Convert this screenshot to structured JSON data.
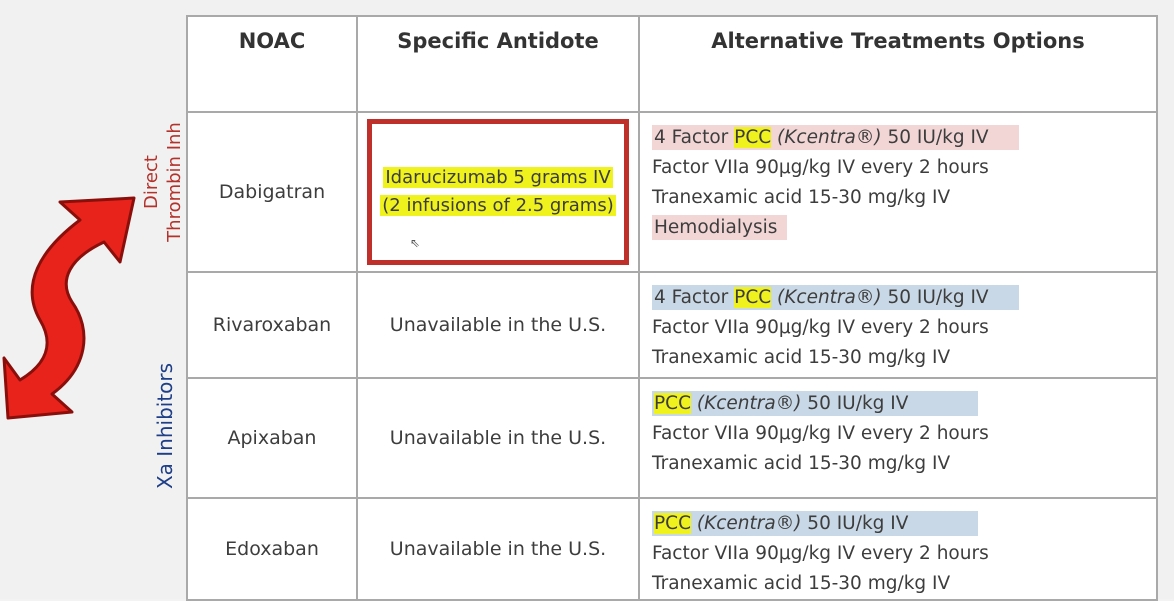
{
  "table": {
    "headers": [
      "NOAC",
      "Specific Antidote",
      "Alternative Treatments Options"
    ],
    "groups": {
      "direct_thrombin": [
        "Direct",
        "Thrombin Inh"
      ],
      "xa_inhibitors": "Xa Inhibitors"
    },
    "rows": [
      {
        "drug": "Dabigatran",
        "antidote": {
          "line1": "Idarucizumab 5 grams  IV",
          "line2": "(2 infusions of 2.5 grams)"
        },
        "alt": {
          "l1_pre": "4 Factor ",
          "l1_pcc": "PCC",
          "l1_kc": " (Kcentra®)",
          "l1_post": " 50 IU/kg IV",
          "l2": "Factor VIIa  90μg/kg  IV every 2 hours",
          "l3": "Tranexamic acid 15-30 mg/kg IV",
          "l4": "Hemodialysis"
        }
      },
      {
        "drug": "Rivaroxaban",
        "antidote": "Unavailable in the U.S.",
        "alt": {
          "l1_pre": "4 Factor ",
          "l1_pcc": "PCC",
          "l1_kc": " (Kcentra®)",
          "l1_post": " 50 IU/kg IV",
          "l2": "Factor VIIa  90μg/kg  IV every 2 hours",
          "l3": "Tranexamic acid 15-30 mg/kg IV"
        }
      },
      {
        "drug": "Apixaban",
        "antidote": "Unavailable in the U.S.",
        "alt": {
          "l1_pcc": "PCC",
          "l1_kc": " (Kcentra®)",
          "l1_post": " 50 IU/kg IV",
          "l2": "Factor VIIa  90μg/kg  IV every 2 hours",
          "l3": "Tranexamic acid 15-30 mg/kg IV"
        }
      },
      {
        "drug": "Edoxaban",
        "antidote": "Unavailable in the U.S.",
        "alt": {
          "l1_pcc": "PCC",
          "l1_kc": " (Kcentra®)",
          "l1_post": " 50 IU/kg IV",
          "l2": "Factor VIIa  90μg/kg  IV every 2 hours",
          "l3": "Tranexamic acid 15-30 mg/kg IV"
        }
      }
    ]
  },
  "colors": {
    "red_accent": "#b3322b",
    "blue_accent": "#1e3f87",
    "highlight_yellow": "#f0f21e",
    "highlight_pink": "#f2d6d6",
    "highlight_blue": "#c9d8e6",
    "arrow_red": "#e8231c"
  },
  "icons": {
    "arrow": "double-headed-curved-arrow-icon",
    "cursor": "mouse-pointer-icon"
  }
}
